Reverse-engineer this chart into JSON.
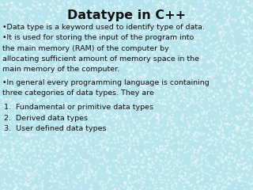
{
  "title": "Datatype in C++",
  "title_fontsize": 11.5,
  "title_fontweight": "bold",
  "background_color": "#b8e4ee",
  "text_color": "#111111",
  "body_fontsize": 6.8,
  "font_family": "DejaVu Sans",
  "bullet1": "•Data type is a keyword used to identify type of data.",
  "bullet2_lines": [
    "•It is used for storing the input of the program into",
    "the main memory (RAM) of the computer by",
    "allocating sufficient amount of memory space in the",
    "main memory of the computer."
  ],
  "bullet3_lines": [
    "•In general every programming language is containing",
    "three categories of data types. They are"
  ],
  "numbered_lines": [
    "1.  Fundamental or primitive data types",
    "2.  Derived data types",
    "3.  User defined data types"
  ]
}
